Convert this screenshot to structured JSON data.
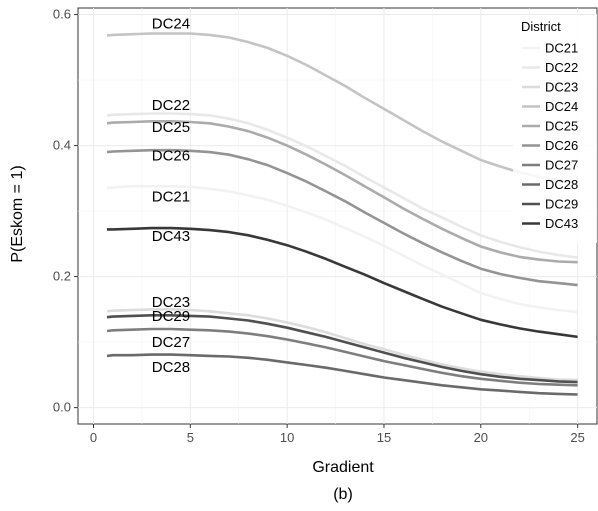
{
  "chart_data": {
    "type": "line",
    "caption": "(b)",
    "xlabel": "Gradient",
    "ylabel": "P(Eskom = 1)",
    "xlim": [
      -0.8,
      26
    ],
    "ylim": [
      -0.025,
      0.61
    ],
    "x_ticks": [
      0,
      5,
      10,
      15,
      20,
      25
    ],
    "y_ticks": [
      0.0,
      0.2,
      0.4,
      0.6
    ],
    "y_tick_labels": [
      "0.0",
      "0.2",
      "0.4",
      "0.6"
    ],
    "grid": true,
    "legend": {
      "title": "District",
      "position": "right-inside-top"
    },
    "x": [
      0.7,
      1,
      2,
      3,
      4,
      5,
      6,
      7,
      8,
      9,
      10,
      11,
      12,
      13,
      14,
      15,
      16,
      17,
      18,
      19,
      20,
      21,
      22,
      23,
      24,
      25
    ],
    "series": [
      {
        "name": "DC21",
        "color": "#f2f2f2",
        "label_xy": [
          4,
          0.322
        ],
        "values": [
          0.335,
          0.336,
          0.338,
          0.338,
          0.338,
          0.337,
          0.334,
          0.33,
          0.324,
          0.317,
          0.308,
          0.298,
          0.287,
          0.274,
          0.261,
          0.247,
          0.232,
          0.217,
          0.203,
          0.189,
          0.175,
          0.166,
          0.158,
          0.153,
          0.149,
          0.146
        ]
      },
      {
        "name": "DC22",
        "color": "#e8e8e8",
        "label_xy": [
          4,
          0.462
        ],
        "values": [
          0.446,
          0.447,
          0.448,
          0.449,
          0.449,
          0.448,
          0.446,
          0.441,
          0.434,
          0.424,
          0.412,
          0.399,
          0.384,
          0.369,
          0.352,
          0.336,
          0.32,
          0.304,
          0.29,
          0.276,
          0.263,
          0.253,
          0.245,
          0.238,
          0.233,
          0.229
        ]
      },
      {
        "name": "DC23",
        "color": "#dcdcdc",
        "label_xy": [
          4,
          0.161
        ],
        "values": [
          0.147,
          0.148,
          0.149,
          0.15,
          0.15,
          0.149,
          0.147,
          0.144,
          0.141,
          0.136,
          0.13,
          0.123,
          0.115,
          0.106,
          0.097,
          0.089,
          0.081,
          0.073,
          0.066,
          0.06,
          0.055,
          0.051,
          0.048,
          0.045,
          0.043,
          0.042
        ]
      },
      {
        "name": "DC24",
        "color": "#c4c4c4",
        "label_xy": [
          4,
          0.586
        ],
        "values": [
          0.568,
          0.569,
          0.57,
          0.571,
          0.571,
          0.571,
          0.569,
          0.565,
          0.558,
          0.549,
          0.537,
          0.523,
          0.507,
          0.491,
          0.473,
          0.456,
          0.439,
          0.422,
          0.406,
          0.392,
          0.378,
          0.368,
          0.359,
          0.352,
          0.347,
          0.343
        ]
      },
      {
        "name": "DC25",
        "color": "#ababab",
        "label_xy": [
          4,
          0.428
        ],
        "values": [
          0.434,
          0.435,
          0.436,
          0.437,
          0.437,
          0.436,
          0.434,
          0.429,
          0.422,
          0.412,
          0.4,
          0.386,
          0.371,
          0.355,
          0.338,
          0.321,
          0.304,
          0.288,
          0.273,
          0.259,
          0.246,
          0.237,
          0.23,
          0.226,
          0.223,
          0.222
        ]
      },
      {
        "name": "DC26",
        "color": "#949494",
        "label_xy": [
          4,
          0.385
        ],
        "values": [
          0.39,
          0.391,
          0.392,
          0.393,
          0.393,
          0.392,
          0.39,
          0.386,
          0.379,
          0.37,
          0.358,
          0.345,
          0.33,
          0.315,
          0.298,
          0.282,
          0.266,
          0.251,
          0.237,
          0.224,
          0.212,
          0.204,
          0.198,
          0.193,
          0.19,
          0.187
        ]
      },
      {
        "name": "DC27",
        "color": "#7e7e7e",
        "label_xy": [
          4,
          0.1
        ],
        "values": [
          0.117,
          0.118,
          0.119,
          0.12,
          0.12,
          0.119,
          0.118,
          0.116,
          0.113,
          0.109,
          0.104,
          0.098,
          0.092,
          0.085,
          0.078,
          0.071,
          0.065,
          0.059,
          0.053,
          0.048,
          0.044,
          0.041,
          0.038,
          0.036,
          0.035,
          0.034
        ]
      },
      {
        "name": "DC28",
        "color": "#6a6a6a",
        "label_xy": [
          4,
          0.062
        ],
        "values": [
          0.079,
          0.08,
          0.08,
          0.081,
          0.081,
          0.08,
          0.079,
          0.078,
          0.076,
          0.073,
          0.069,
          0.065,
          0.061,
          0.056,
          0.051,
          0.046,
          0.042,
          0.038,
          0.034,
          0.031,
          0.028,
          0.026,
          0.024,
          0.022,
          0.021,
          0.02
        ]
      },
      {
        "name": "DC29",
        "color": "#505050",
        "label_xy": [
          4,
          0.14
        ],
        "values": [
          0.138,
          0.139,
          0.14,
          0.141,
          0.141,
          0.14,
          0.139,
          0.136,
          0.133,
          0.128,
          0.122,
          0.115,
          0.108,
          0.1,
          0.092,
          0.084,
          0.076,
          0.069,
          0.062,
          0.056,
          0.051,
          0.047,
          0.044,
          0.042,
          0.04,
          0.039
        ]
      },
      {
        "name": "DC43",
        "color": "#383838",
        "label_xy": [
          4,
          0.262
        ],
        "values": [
          0.272,
          0.272,
          0.273,
          0.274,
          0.274,
          0.273,
          0.271,
          0.268,
          0.263,
          0.256,
          0.248,
          0.238,
          0.227,
          0.215,
          0.203,
          0.19,
          0.178,
          0.166,
          0.154,
          0.144,
          0.134,
          0.127,
          0.121,
          0.116,
          0.112,
          0.108
        ]
      }
    ]
  }
}
